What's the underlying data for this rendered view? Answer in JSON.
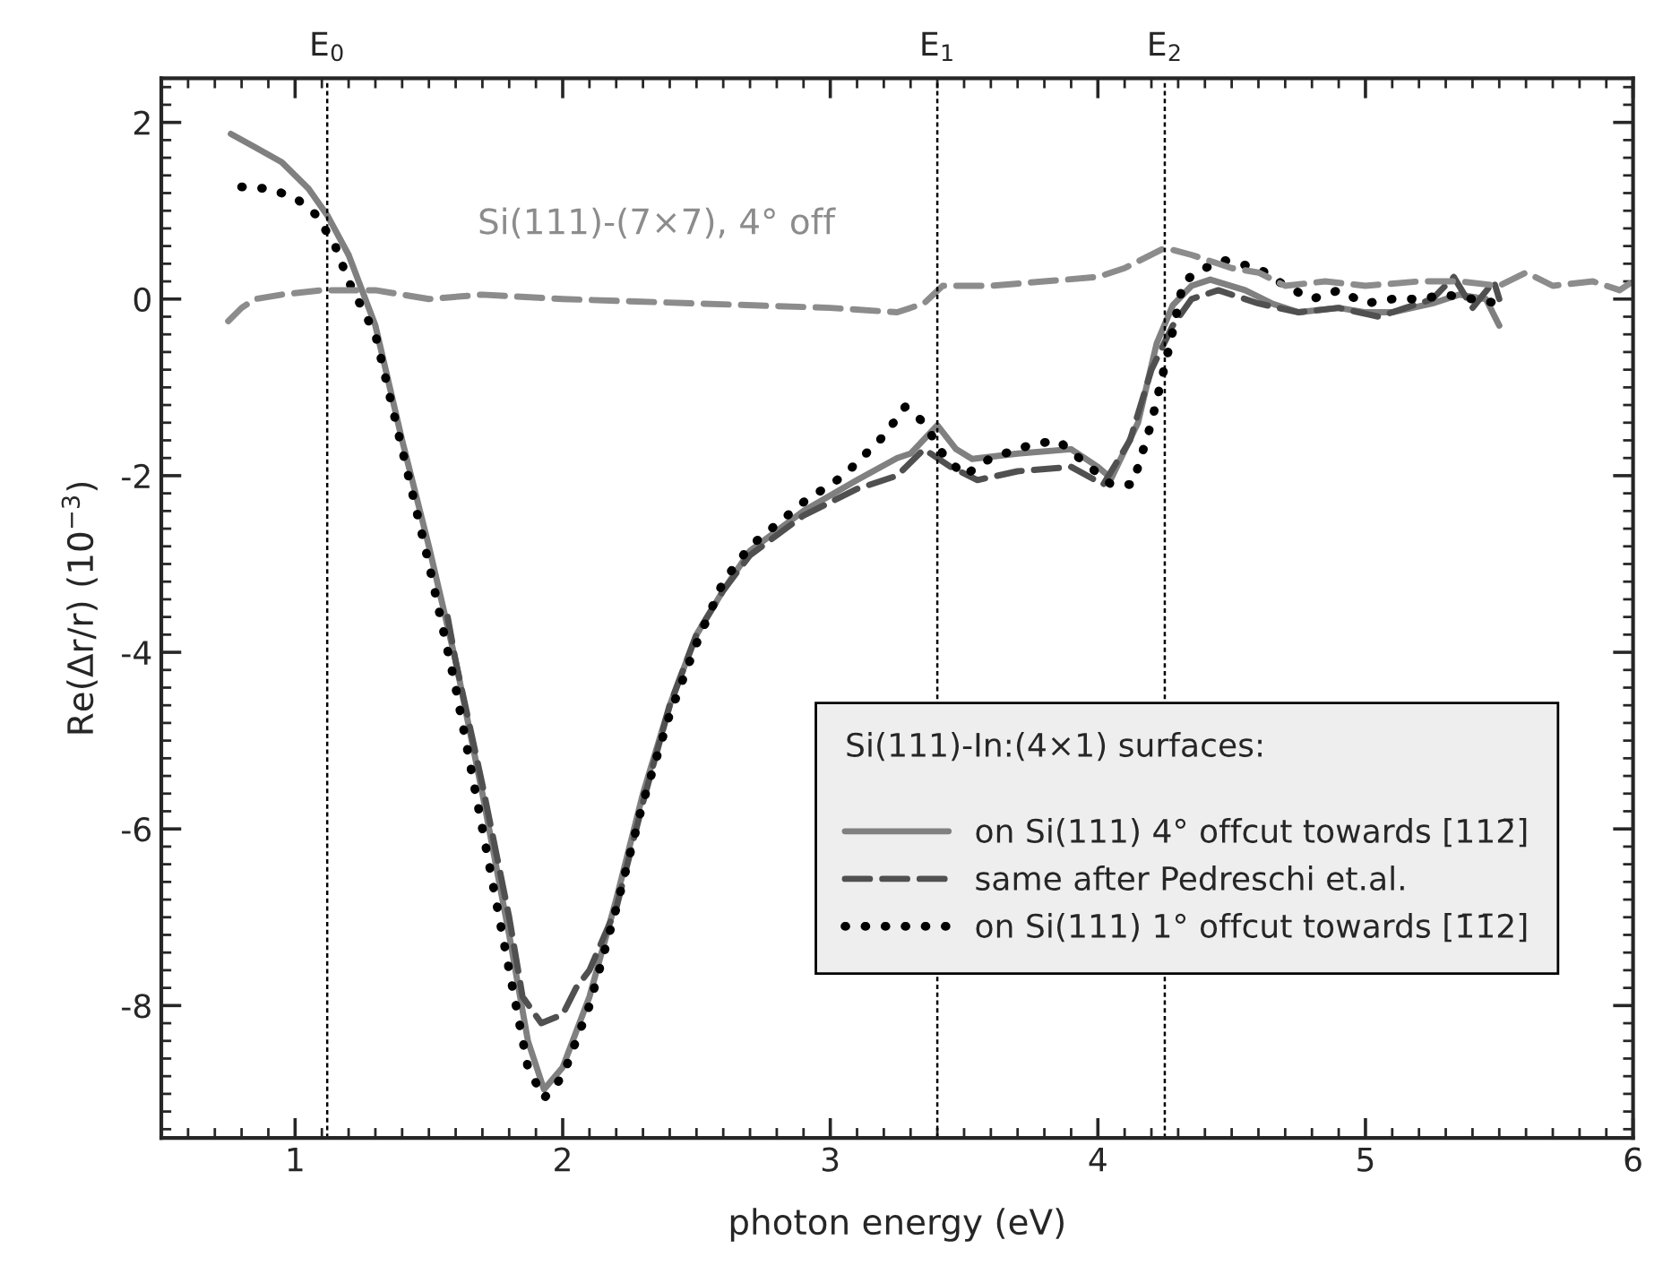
{
  "chart_data": {
    "type": "line",
    "xlabel": "photon energy (eV)",
    "ylabel": "Re(Δr/r) (10$^{−3}$)",
    "xlim": [
      0.5,
      6
    ],
    "xticks": [
      1,
      2,
      3,
      4,
      5,
      6
    ],
    "ylim": [
      -9.5,
      2.5
    ],
    "yticks": [
      -8,
      -6,
      -4,
      -2,
      0,
      2
    ],
    "grid": false,
    "legend": "bottom right",
    "annotations": [
      {
        "text": "Si(111)-(7×7), 4° off",
        "x": 2.35,
        "y": 0.0
      }
    ],
    "legend_title": "Si(111)-In:(4×1) surfaces:",
    "ref_lines": [
      {
        "axis": "x",
        "value": 1.12,
        "label": "E$_{0}$",
        "color": "#000000",
        "line_style": "dotted"
      },
      {
        "axis": "x",
        "value": 3.4,
        "label": "E$_{1}$",
        "color": "#000000",
        "line_style": "dotted"
      },
      {
        "axis": "x",
        "value": 4.25,
        "label": "E$_{2}$",
        "color": "#000000",
        "line_style": "dotted"
      }
    ],
    "series": [
      {
        "name": "on Si(111) 4° offcut towards [112̄]",
        "color": "#808080",
        "line_style": "solid",
        "x": [
          0.76,
          0.85,
          0.95,
          1.05,
          1.12,
          1.2,
          1.3,
          1.4,
          1.5,
          1.6,
          1.7,
          1.8,
          1.87,
          1.93,
          2.0,
          2.1,
          2.2,
          2.3,
          2.4,
          2.5,
          2.6,
          2.7,
          2.9,
          3.1,
          3.25,
          3.3,
          3.4,
          3.47,
          3.53,
          3.7,
          3.9,
          4.0,
          4.05,
          4.15,
          4.22,
          4.28,
          4.35,
          4.42,
          4.55,
          4.65,
          4.75,
          4.9,
          5.0,
          5.1,
          5.25,
          5.35,
          5.45,
          5.5
        ],
        "values": [
          1.87,
          1.72,
          1.55,
          1.25,
          0.95,
          0.5,
          -0.3,
          -1.6,
          -2.8,
          -4.1,
          -5.6,
          -7.2,
          -8.4,
          -8.95,
          -8.7,
          -7.9,
          -6.8,
          -5.6,
          -4.6,
          -3.8,
          -3.3,
          -2.85,
          -2.4,
          -2.05,
          -1.8,
          -1.75,
          -1.43,
          -1.7,
          -1.81,
          -1.75,
          -1.7,
          -1.9,
          -2.03,
          -1.4,
          -0.5,
          -0.07,
          0.15,
          0.22,
          0.1,
          -0.05,
          -0.15,
          -0.1,
          -0.15,
          -0.15,
          -0.05,
          0.05,
          0.0,
          -0.3
        ]
      },
      {
        "name": "same after Pedreschi et.al.",
        "color": "#505050",
        "line_style": "dashed",
        "x": [
          1.57,
          1.6,
          1.7,
          1.8,
          1.85,
          1.92,
          2.0,
          2.05,
          2.1,
          2.2,
          2.3,
          2.4,
          2.5,
          2.6,
          2.7,
          2.9,
          3.1,
          3.25,
          3.35,
          3.45,
          3.55,
          3.7,
          3.9,
          4.02,
          4.12,
          4.2,
          4.28,
          4.35,
          4.45,
          4.6,
          4.75,
          4.9,
          5.05,
          5.15,
          5.25,
          5.33,
          5.4,
          5.48,
          5.5
        ],
        "values": [
          -3.6,
          -4.1,
          -5.5,
          -7.0,
          -7.9,
          -8.2,
          -8.1,
          -7.8,
          -7.6,
          -6.9,
          -5.7,
          -4.6,
          -3.8,
          -3.3,
          -2.9,
          -2.45,
          -2.15,
          -2.0,
          -1.7,
          -1.9,
          -2.05,
          -1.95,
          -1.9,
          -2.1,
          -1.6,
          -0.8,
          -0.3,
          0.0,
          0.1,
          -0.05,
          -0.15,
          -0.1,
          -0.2,
          -0.1,
          0.0,
          0.25,
          -0.1,
          0.2,
          0.0
        ]
      },
      {
        "name": "on Si(111) 1° offcut towards [1̄1̄2]",
        "color": "#000000",
        "line_style": "dotted",
        "x": [
          0.8,
          0.9,
          1.0,
          1.08,
          1.15,
          1.2,
          1.3,
          1.4,
          1.5,
          1.6,
          1.7,
          1.8,
          1.87,
          1.93,
          2.0,
          2.1,
          2.2,
          2.3,
          2.4,
          2.5,
          2.6,
          2.7,
          2.9,
          3.05,
          3.2,
          3.28,
          3.35,
          3.42,
          3.5,
          3.6,
          3.75,
          3.85,
          3.95,
          4.05,
          4.13,
          4.2,
          4.27,
          4.32,
          4.4,
          4.47,
          4.6,
          4.7,
          4.8,
          4.9,
          5.0,
          5.1,
          5.2,
          5.3,
          5.4,
          5.5
        ],
        "values": [
          1.27,
          1.25,
          1.15,
          0.95,
          0.6,
          0.2,
          -0.4,
          -1.7,
          -3.0,
          -4.4,
          -6.0,
          -7.6,
          -8.7,
          -9.05,
          -8.8,
          -8.0,
          -6.9,
          -5.7,
          -4.7,
          -3.9,
          -3.2,
          -2.8,
          -2.3,
          -2.0,
          -1.55,
          -1.22,
          -1.4,
          -1.75,
          -2.0,
          -1.8,
          -1.65,
          -1.6,
          -1.85,
          -2.1,
          -2.1,
          -1.4,
          -0.5,
          0.2,
          0.35,
          0.44,
          0.35,
          0.15,
          0.0,
          0.1,
          -0.05,
          0.0,
          0.0,
          0.05,
          0.0,
          -0.05
        ]
      },
      {
        "color": "#8c8c8c",
        "line_style": "dashed",
        "x": [
          0.75,
          0.8,
          0.85,
          0.95,
          1.1,
          1.3,
          1.5,
          1.7,
          2.0,
          2.5,
          3.0,
          3.25,
          3.35,
          3.42,
          3.6,
          3.8,
          4.0,
          4.1,
          4.25,
          4.35,
          4.5,
          4.6,
          4.7,
          4.85,
          5.0,
          5.2,
          5.35,
          5.5,
          5.6,
          5.7,
          5.85,
          5.95,
          6.0
        ],
        "values": [
          -0.25,
          -0.1,
          0.0,
          0.05,
          0.1,
          0.1,
          0.0,
          0.05,
          0.0,
          -0.05,
          -0.1,
          -0.15,
          -0.05,
          0.15,
          0.15,
          0.2,
          0.25,
          0.35,
          0.58,
          0.5,
          0.35,
          0.3,
          0.15,
          0.2,
          0.15,
          0.2,
          0.2,
          0.15,
          0.3,
          0.15,
          0.2,
          0.1,
          0.2
        ]
      }
    ]
  }
}
